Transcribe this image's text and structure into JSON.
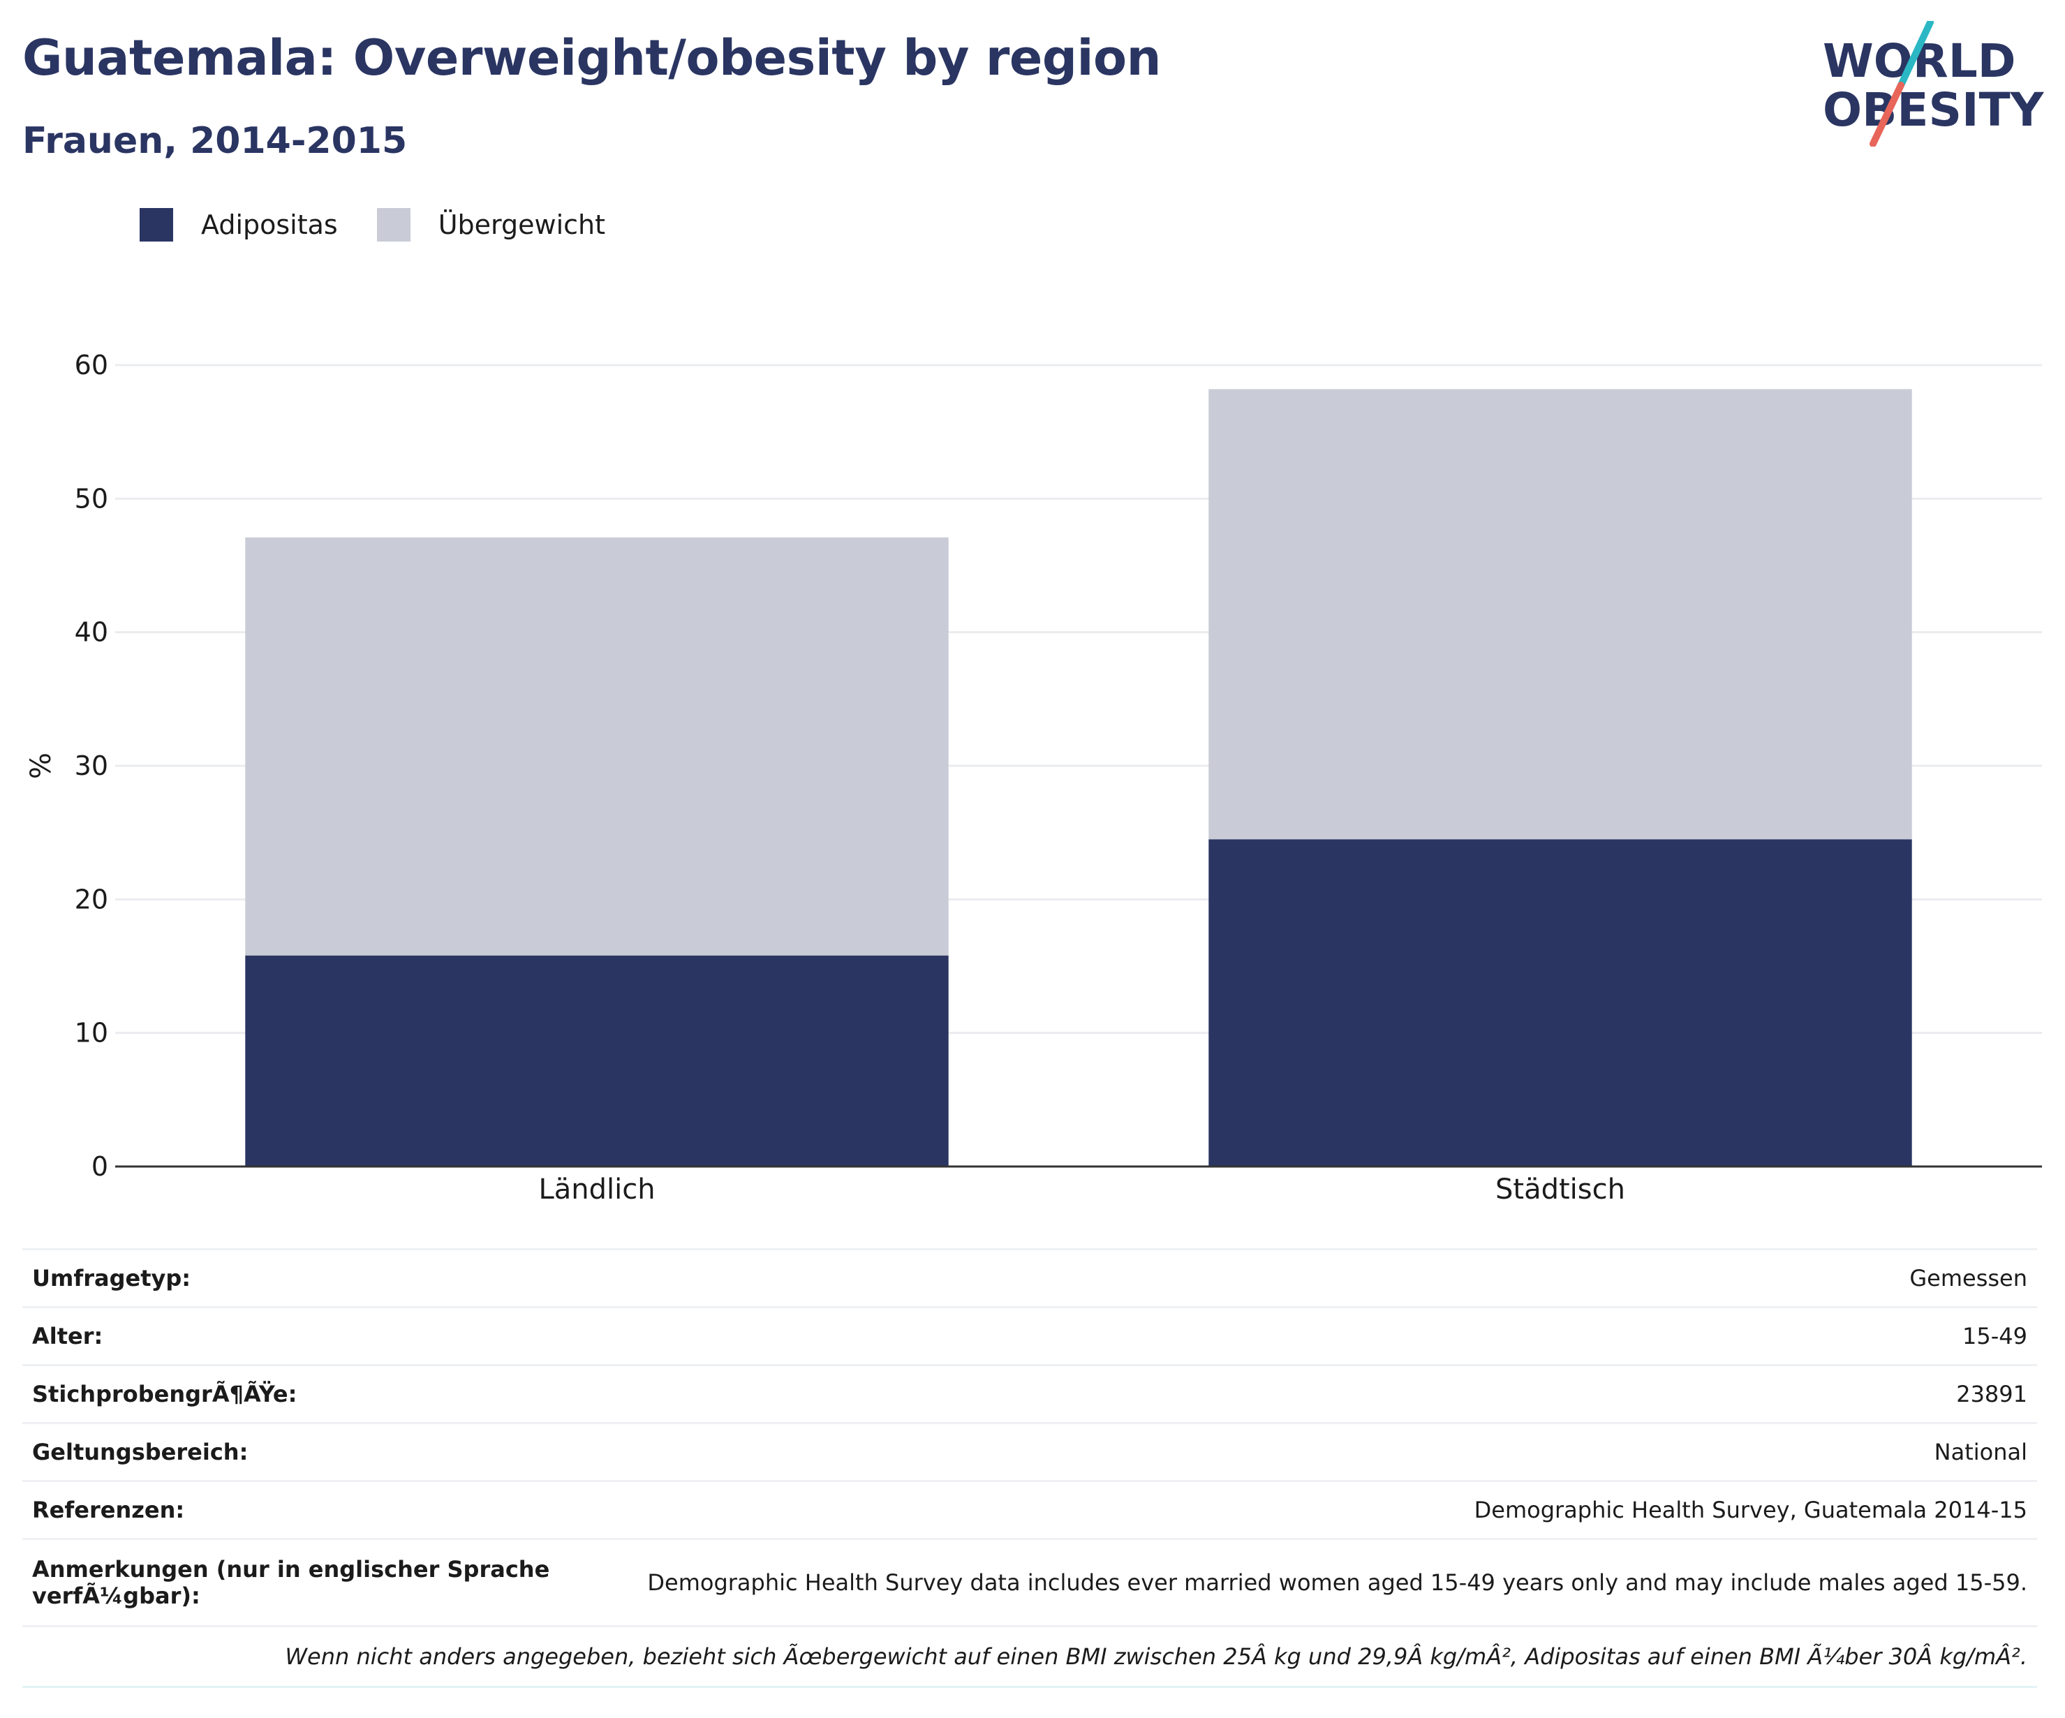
{
  "header": {
    "title": "Guatemala: Overweight/obesity by region",
    "subtitle": "Frauen, 2014-2015"
  },
  "logo": {
    "line1": "WORLD",
    "line2": "OBESITY"
  },
  "colors": {
    "obesity": "#2a3562",
    "overweight": "#c9cbd6",
    "accent_teal": "#2bb8c4",
    "accent_coral": "#e8655a"
  },
  "chart_data": {
    "type": "bar",
    "stacked": true,
    "categories": [
      "Ländlich",
      "Städtisch"
    ],
    "series": [
      {
        "name": "Adipositas",
        "color": "#2a3562",
        "values": [
          15.8,
          24.5
        ]
      },
      {
        "name": "Übergewicht",
        "color": "#c9cbd6",
        "values": [
          31.3,
          33.7
        ]
      }
    ],
    "ylabel": "%",
    "ylim": [
      0,
      60
    ],
    "yticks": [
      0,
      10,
      20,
      30,
      40,
      50,
      60
    ],
    "grid": true,
    "legend": "top-left"
  },
  "info": {
    "rows": [
      {
        "label": "Umfragetyp:",
        "value": "Gemessen"
      },
      {
        "label": "Alter:",
        "value": "15-49"
      },
      {
        "label": "StichprobengrÃ¶ÃŸe:",
        "value": "23891"
      },
      {
        "label": "Geltungsbereich:",
        "value": "National"
      },
      {
        "label": "Referenzen:",
        "value": "Demographic Health Survey, Guatemala 2014-15"
      },
      {
        "label": "Anmerkungen (nur in englischer Sprache verfÃ¼gbar):",
        "value": "Demographic Health Survey data includes ever married women aged 15-49 years only and may include males aged 15-59."
      }
    ],
    "footnote": "Wenn nicht anders angegeben, bezieht sich Ãœbergewicht auf einen BMI zwischen 25Â kg und 29,9Â kg/mÂ², Adipositas auf einen BMI Ã¼ber 30Â kg/mÂ²."
  }
}
